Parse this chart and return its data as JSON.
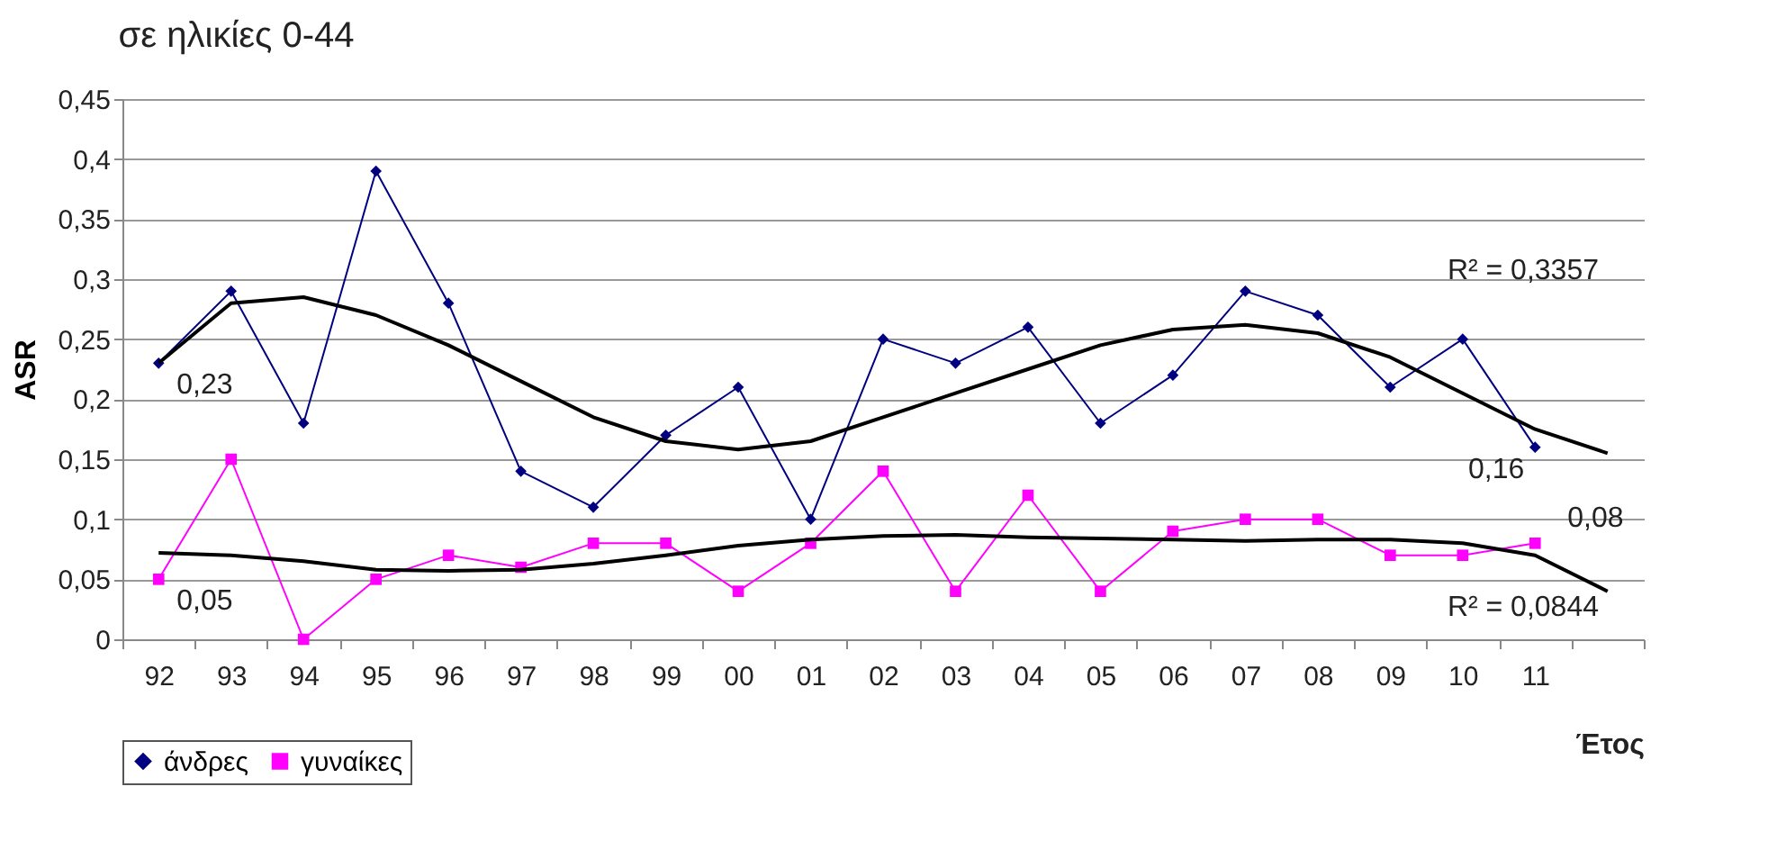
{
  "chart_data": {
    "type": "line",
    "title": "σε ηλικίες 0-44",
    "xlabel": "Έτος",
    "ylabel": "ASR",
    "categories": [
      "92",
      "93",
      "94",
      "95",
      "96",
      "97",
      "98",
      "99",
      "00",
      "01",
      "02",
      "03",
      "04",
      "05",
      "06",
      "07",
      "08",
      "09",
      "10",
      "11",
      null
    ],
    "series": [
      {
        "name": "άνδρες",
        "color": "#000080",
        "marker": "diamond",
        "values": [
          0.23,
          0.29,
          0.18,
          0.39,
          0.28,
          0.14,
          0.11,
          0.17,
          0.21,
          0.1,
          0.25,
          0.23,
          0.26,
          0.18,
          0.22,
          0.29,
          0.27,
          0.21,
          0.25,
          0.16,
          null
        ]
      },
      {
        "name": "γυναίκες",
        "color": "#ff00ff",
        "marker": "square",
        "values": [
          0.05,
          0.15,
          0,
          0.05,
          0.07,
          0.06,
          0.08,
          0.08,
          0.04,
          0.08,
          0.14,
          0.04,
          0.12,
          0.04,
          0.09,
          0.1,
          0.1,
          0.07,
          0.07,
          0.08,
          null
        ]
      },
      {
        "color": "#000000",
        "marker": "none",
        "values": [
          0.23,
          0.28,
          0.285,
          0.27,
          0.245,
          0.215,
          0.185,
          0.165,
          0.158,
          0.165,
          0.185,
          0.205,
          0.225,
          0.245,
          0.258,
          0.262,
          0.255,
          0.235,
          0.205,
          0.175,
          0.155
        ]
      },
      {
        "color": "#000000",
        "marker": "none",
        "values": [
          0.072,
          0.07,
          0.065,
          0.058,
          0.057,
          0.058,
          0.063,
          0.07,
          0.078,
          0.083,
          0.086,
          0.087,
          0.085,
          0.084,
          0.083,
          0.082,
          0.083,
          0.083,
          0.08,
          0.07,
          0.04
        ]
      }
    ],
    "ylim": [
      0,
      0.45
    ],
    "yticks": [
      0,
      {
        "value": 0.05,
        "label": "0,05"
      },
      {
        "value": 0.1,
        "label": "0,1"
      },
      {
        "value": 0.15,
        "label": "0,15"
      },
      {
        "value": 0.2,
        "label": "0,2"
      },
      {
        "value": 0.25,
        "label": "0,25"
      },
      {
        "value": 0.3,
        "label": "0,3"
      },
      {
        "value": 0.35,
        "label": "0,35"
      },
      {
        "value": 0.4,
        "label": "0,4"
      },
      {
        "value": 0.45,
        "label": "0,45"
      }
    ],
    "grid": "y",
    "legend": "bottom",
    "annotations": [
      {
        "text": "0,23",
        "x": "92",
        "y": 0.23
      },
      {
        "text": "0,05",
        "x": "92",
        "y": 0.05
      },
      {
        "text": "0,16",
        "x": "11",
        "y": 0.16
      },
      {
        "text": "0,08",
        "x": "11",
        "y": 0.08
      },
      "R² = 0,3357",
      "R² = 0,0844"
    ]
  }
}
